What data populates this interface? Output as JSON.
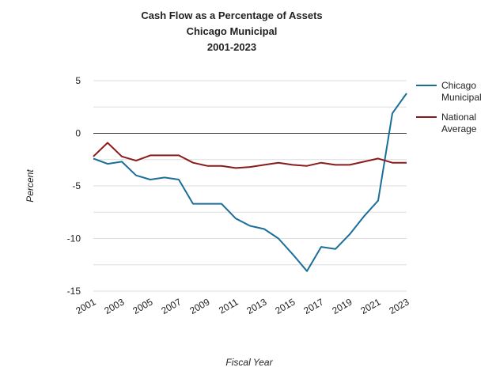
{
  "chart_data": {
    "type": "line",
    "title": "Cash Flow as a Percentage of Assets",
    "subtitle_lines": [
      "Chicago Municipal",
      "2001-2023"
    ],
    "xlabel": "Fiscal Year",
    "ylabel": "Percent",
    "ylim": [
      -15,
      5
    ],
    "yticks": [
      5,
      0,
      -5,
      -10,
      -15
    ],
    "x": [
      2001,
      2002,
      2003,
      2004,
      2005,
      2006,
      2007,
      2008,
      2009,
      2010,
      2011,
      2012,
      2013,
      2014,
      2015,
      2016,
      2017,
      2018,
      2019,
      2020,
      2021,
      2022,
      2023
    ],
    "xtick_labels": [
      "2001",
      "2003",
      "2005",
      "2007",
      "2009",
      "2011",
      "2013",
      "2015",
      "2017",
      "2019",
      "2021",
      "2023"
    ],
    "grid": true,
    "legend_position": "right",
    "series": [
      {
        "name": "Chicago Municipal",
        "legend_lines": [
          "Chicago",
          "Municipal"
        ],
        "color": "#1a6e99",
        "values": [
          -2.4,
          -2.9,
          -2.7,
          -4.0,
          -4.4,
          -4.2,
          -4.4,
          -6.7,
          -6.7,
          -6.7,
          -8.1,
          -8.8,
          -9.1,
          -10.0,
          -11.5,
          -13.1,
          -10.8,
          -11.0,
          -9.6,
          -7.9,
          -6.4,
          1.9,
          3.8
        ]
      },
      {
        "name": "National Average",
        "legend_lines": [
          "National",
          "Average"
        ],
        "color": "#8b1a1a",
        "values": [
          -2.2,
          -0.9,
          -2.2,
          -2.6,
          -2.1,
          -2.1,
          -2.1,
          -2.8,
          -3.1,
          -3.1,
          -3.3,
          -3.2,
          -3.0,
          -2.8,
          -3.0,
          -3.1,
          -2.8,
          -3.0,
          -3.0,
          -2.7,
          -2.4,
          -2.8,
          -2.8
        ]
      }
    ]
  }
}
